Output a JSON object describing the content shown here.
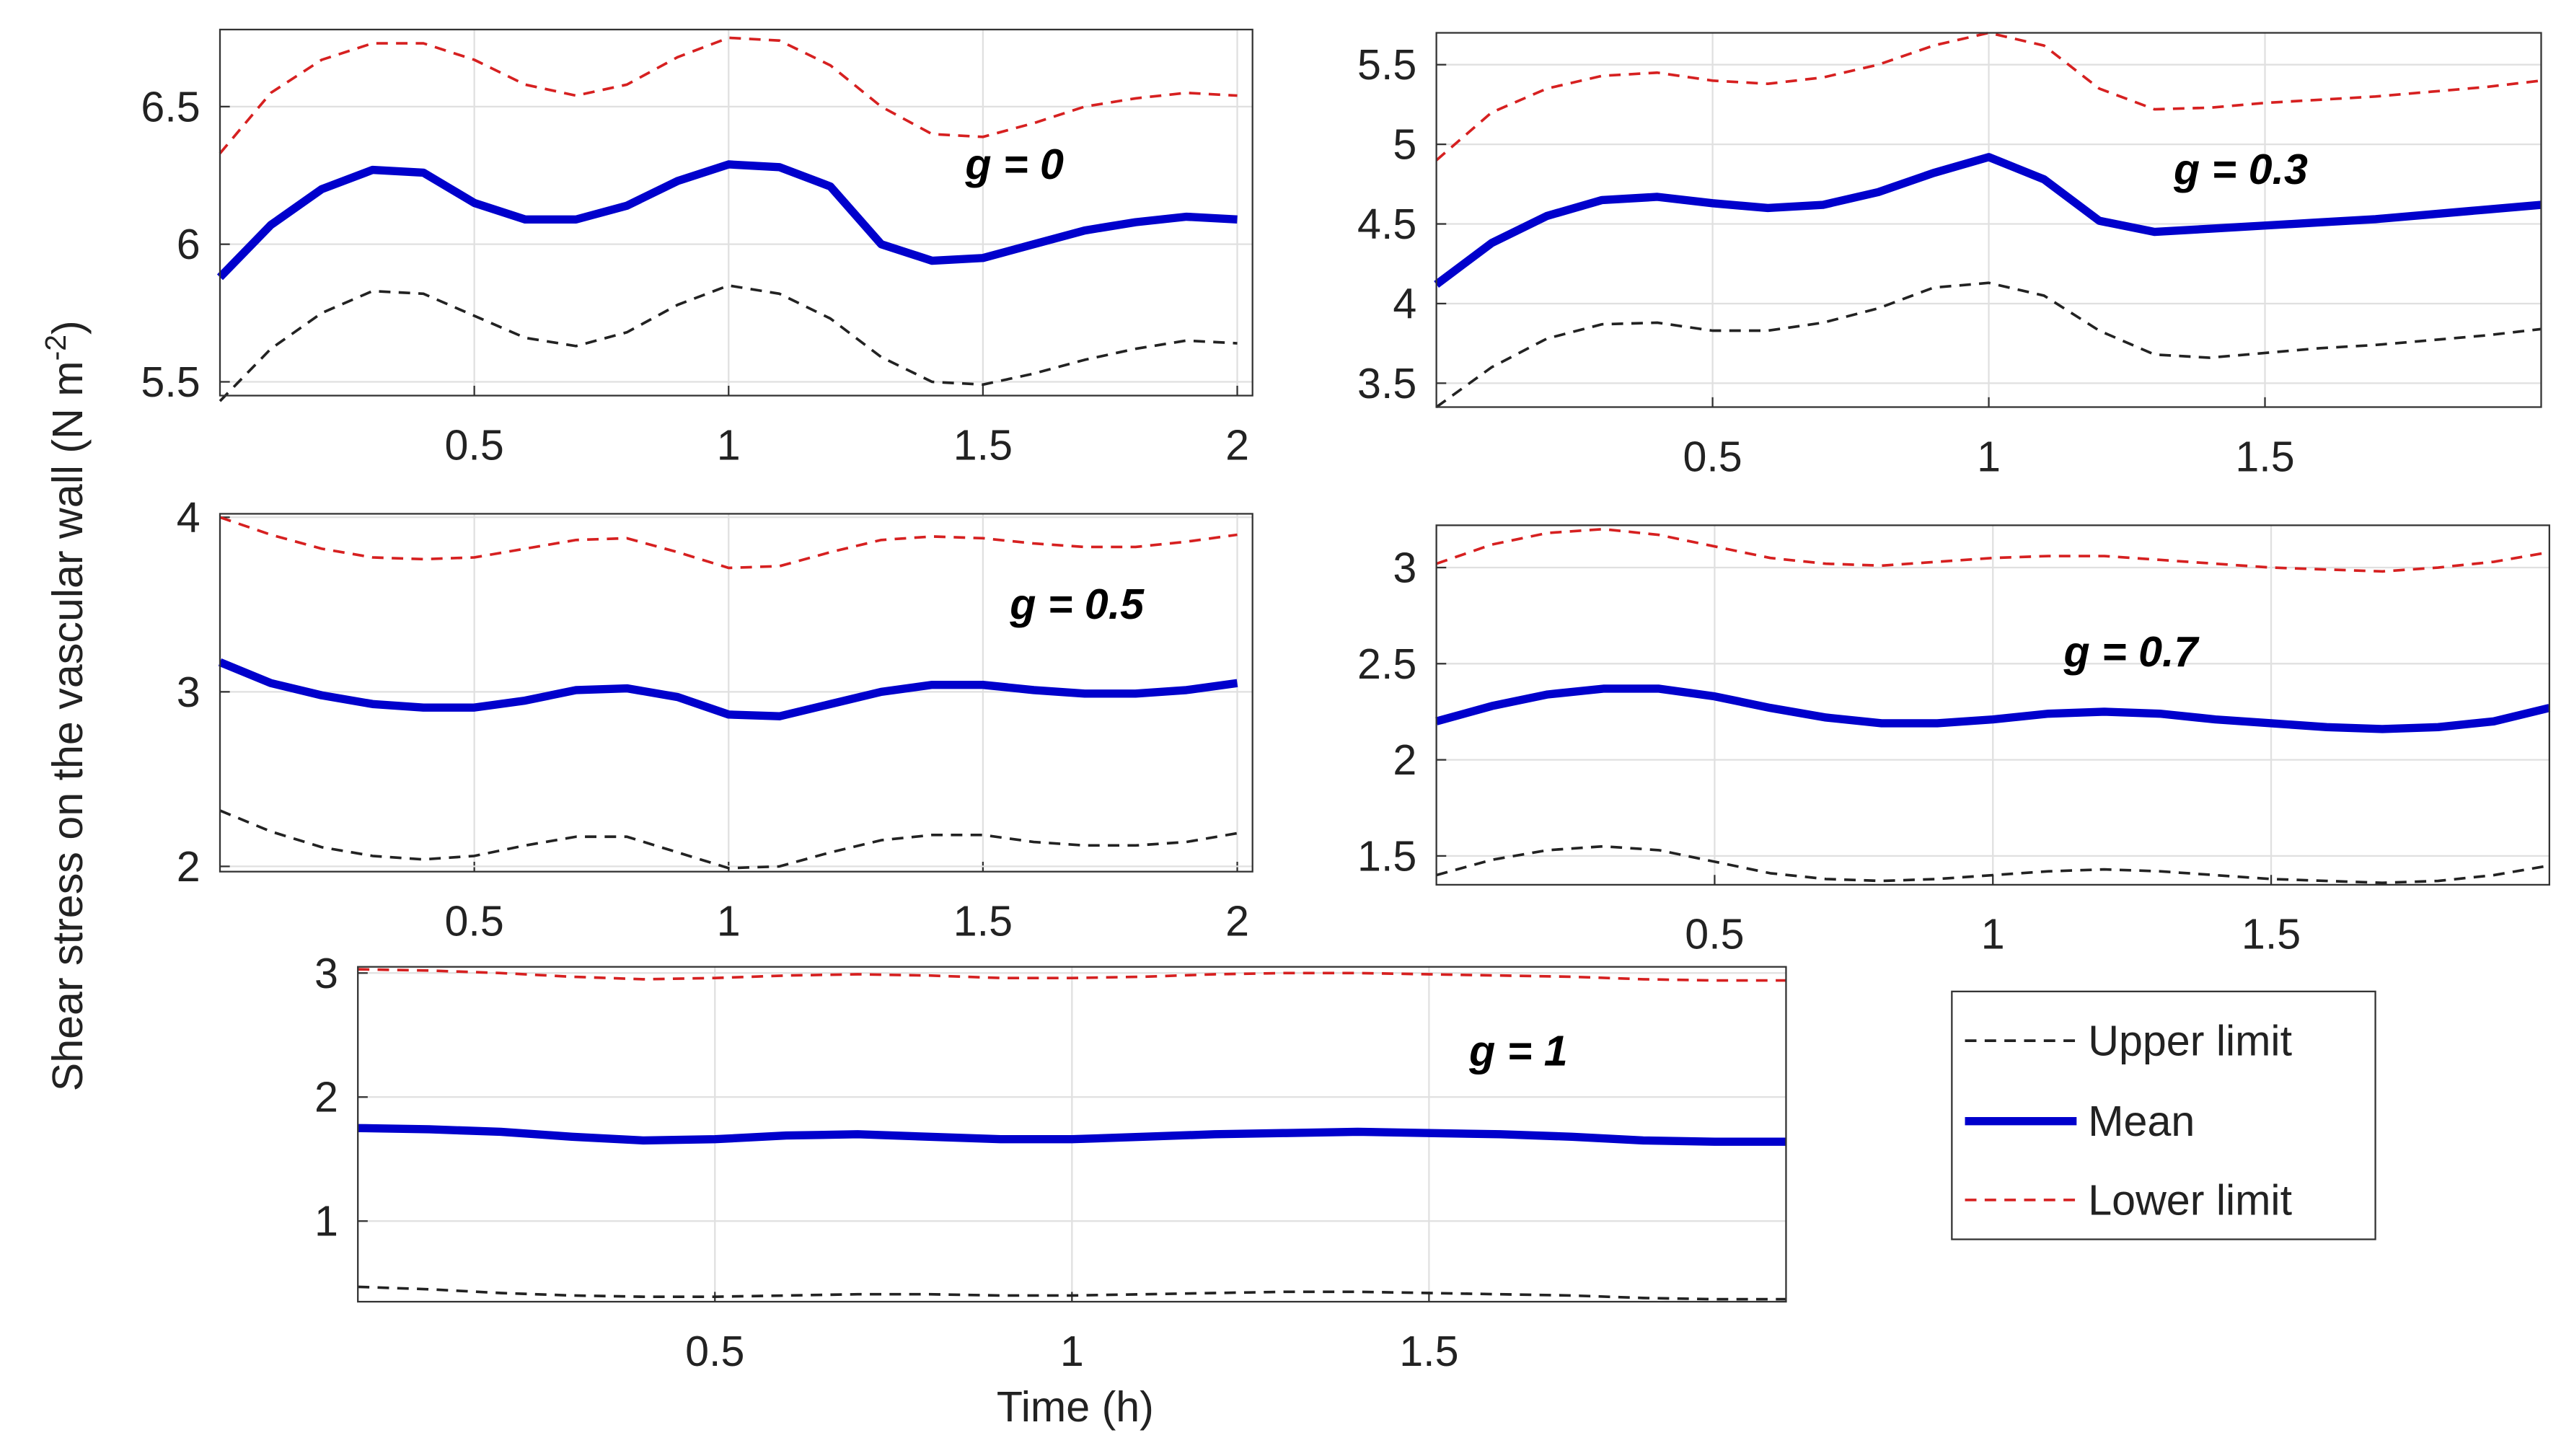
{
  "ylabel": "Shear stress on the vascular wall (N m",
  "ylabel_superscript": "-2",
  "ylabel_suffix": ")",
  "xlabel": "Time (h)",
  "chart_data": [
    {
      "type": "line",
      "annotation": "g = 0",
      "x": [
        0,
        0.1,
        0.2,
        0.3,
        0.4,
        0.5,
        0.6,
        0.7,
        0.8,
        0.9,
        1.0,
        1.1,
        1.2,
        1.3,
        1.4,
        1.5,
        1.6,
        1.7,
        1.8,
        1.9,
        2.0
      ],
      "xlim": [
        0,
        2.03
      ],
      "ylim": [
        5.45,
        6.78
      ],
      "xticks": [
        0.5,
        1,
        1.5,
        2
      ],
      "yticks": [
        5.5,
        6,
        6.5
      ],
      "grid": true,
      "series": [
        {
          "name": "Upper limit",
          "color": "#222222",
          "dash": true,
          "values": [
            5.43,
            5.62,
            5.75,
            5.83,
            5.82,
            5.74,
            5.66,
            5.63,
            5.68,
            5.78,
            5.85,
            5.82,
            5.73,
            5.59,
            5.5,
            5.49,
            5.53,
            5.58,
            5.62,
            5.65,
            5.64
          ]
        },
        {
          "name": "Mean",
          "color": "#0000cc",
          "dash": false,
          "values": [
            5.88,
            6.07,
            6.2,
            6.27,
            6.26,
            6.15,
            6.09,
            6.09,
            6.14,
            6.23,
            6.29,
            6.28,
            6.21,
            6.0,
            5.94,
            5.95,
            6.0,
            6.05,
            6.08,
            6.1,
            6.09
          ]
        },
        {
          "name": "Lower limit",
          "color": "#d62020",
          "dash": true,
          "values": [
            6.33,
            6.55,
            6.67,
            6.73,
            6.73,
            6.67,
            6.58,
            6.54,
            6.58,
            6.68,
            6.75,
            6.74,
            6.65,
            6.5,
            6.4,
            6.39,
            6.44,
            6.5,
            6.53,
            6.55,
            6.54
          ]
        }
      ]
    },
    {
      "type": "line",
      "annotation": "g = 0.3",
      "x": [
        0,
        0.1,
        0.2,
        0.3,
        0.4,
        0.5,
        0.6,
        0.7,
        0.8,
        0.9,
        1.0,
        1.1,
        1.2,
        1.3,
        1.4,
        1.5,
        1.6,
        1.7,
        1.8,
        1.9,
        2.0
      ],
      "xlim": [
        0,
        2
      ],
      "ylim": [
        3.35,
        5.7
      ],
      "xticks": [
        0.5,
        1,
        1.5
      ],
      "yticks": [
        3.5,
        4,
        4.5,
        5,
        5.5
      ],
      "grid": true,
      "series": [
        {
          "name": "Upper limit",
          "color": "#222222",
          "dash": true,
          "values": [
            3.35,
            3.6,
            3.78,
            3.87,
            3.88,
            3.83,
            3.83,
            3.88,
            3.97,
            4.1,
            4.13,
            4.05,
            3.83,
            3.68,
            3.66,
            3.69,
            3.72,
            3.74,
            3.77,
            3.8,
            3.84
          ]
        },
        {
          "name": "Mean",
          "color": "#0000cc",
          "dash": false,
          "values": [
            4.12,
            4.38,
            4.55,
            4.65,
            4.67,
            4.63,
            4.6,
            4.62,
            4.7,
            4.82,
            4.92,
            4.78,
            4.52,
            4.45,
            4.47,
            4.49,
            4.51,
            4.53,
            4.56,
            4.59,
            4.62
          ]
        },
        {
          "name": "Lower limit",
          "color": "#d62020",
          "dash": true,
          "values": [
            4.9,
            5.2,
            5.35,
            5.43,
            5.45,
            5.4,
            5.38,
            5.42,
            5.5,
            5.62,
            5.7,
            5.62,
            5.35,
            5.22,
            5.23,
            5.26,
            5.28,
            5.3,
            5.33,
            5.36,
            5.4
          ]
        }
      ]
    },
    {
      "type": "line",
      "annotation": "g = 0.5",
      "x": [
        0,
        0.1,
        0.2,
        0.3,
        0.4,
        0.5,
        0.6,
        0.7,
        0.8,
        0.9,
        1.0,
        1.1,
        1.2,
        1.3,
        1.4,
        1.5,
        1.6,
        1.7,
        1.8,
        1.9,
        2.0
      ],
      "xlim": [
        0,
        2.03
      ],
      "ylim": [
        1.97,
        4.02
      ],
      "xticks": [
        0.5,
        1,
        1.5,
        2
      ],
      "yticks": [
        2,
        3,
        4
      ],
      "grid": true,
      "series": [
        {
          "name": "Upper limit",
          "color": "#222222",
          "dash": true,
          "values": [
            2.32,
            2.2,
            2.11,
            2.06,
            2.04,
            2.06,
            2.12,
            2.17,
            2.17,
            2.08,
            1.99,
            2.0,
            2.08,
            2.15,
            2.18,
            2.18,
            2.14,
            2.12,
            2.12,
            2.14,
            2.19
          ]
        },
        {
          "name": "Mean",
          "color": "#0000cc",
          "dash": false,
          "values": [
            3.17,
            3.05,
            2.98,
            2.93,
            2.91,
            2.91,
            2.95,
            3.01,
            3.02,
            2.97,
            2.87,
            2.86,
            2.93,
            3.0,
            3.04,
            3.04,
            3.01,
            2.99,
            2.99,
            3.01,
            3.05
          ]
        },
        {
          "name": "Lower limit",
          "color": "#d62020",
          "dash": true,
          "values": [
            4.0,
            3.9,
            3.82,
            3.77,
            3.76,
            3.77,
            3.82,
            3.87,
            3.88,
            3.8,
            3.71,
            3.72,
            3.8,
            3.87,
            3.89,
            3.88,
            3.85,
            3.83,
            3.83,
            3.86,
            3.9
          ]
        }
      ]
    },
    {
      "type": "line",
      "annotation": "g = 0.7",
      "x": [
        0,
        0.1,
        0.2,
        0.3,
        0.4,
        0.5,
        0.6,
        0.7,
        0.8,
        0.9,
        1.0,
        1.1,
        1.2,
        1.3,
        1.4,
        1.5,
        1.6,
        1.7,
        1.8,
        1.9,
        2.0
      ],
      "xlim": [
        0,
        2
      ],
      "ylim": [
        1.35,
        3.22
      ],
      "xticks": [
        0.5,
        1,
        1.5
      ],
      "yticks": [
        1.5,
        2,
        2.5,
        3
      ],
      "grid": true,
      "series": [
        {
          "name": "Upper limit",
          "color": "#222222",
          "dash": true,
          "values": [
            1.4,
            1.48,
            1.53,
            1.55,
            1.53,
            1.47,
            1.41,
            1.38,
            1.37,
            1.38,
            1.4,
            1.42,
            1.43,
            1.42,
            1.4,
            1.38,
            1.37,
            1.36,
            1.37,
            1.4,
            1.45
          ]
        },
        {
          "name": "Mean",
          "color": "#0000cc",
          "dash": false,
          "values": [
            2.2,
            2.28,
            2.34,
            2.37,
            2.37,
            2.33,
            2.27,
            2.22,
            2.19,
            2.19,
            2.21,
            2.24,
            2.25,
            2.24,
            2.21,
            2.19,
            2.17,
            2.16,
            2.17,
            2.2,
            2.27
          ]
        },
        {
          "name": "Lower limit",
          "color": "#d62020",
          "dash": true,
          "values": [
            3.02,
            3.12,
            3.18,
            3.2,
            3.17,
            3.11,
            3.05,
            3.02,
            3.01,
            3.03,
            3.05,
            3.06,
            3.06,
            3.04,
            3.02,
            3.0,
            2.99,
            2.98,
            3.0,
            3.03,
            3.08
          ]
        }
      ]
    },
    {
      "type": "line",
      "annotation": "g = 1",
      "x": [
        0,
        0.1,
        0.2,
        0.3,
        0.4,
        0.5,
        0.6,
        0.7,
        0.8,
        0.9,
        1.0,
        1.1,
        1.2,
        1.3,
        1.4,
        1.5,
        1.6,
        1.7,
        1.8,
        1.9,
        2.0
      ],
      "xlim": [
        0,
        2
      ],
      "ylim": [
        0.35,
        3.05
      ],
      "xticks": [
        0.5,
        1,
        1.5
      ],
      "yticks": [
        1,
        2,
        3
      ],
      "grid": true,
      "series": [
        {
          "name": "Upper limit",
          "color": "#222222",
          "dash": true,
          "values": [
            0.47,
            0.45,
            0.42,
            0.4,
            0.39,
            0.39,
            0.4,
            0.41,
            0.41,
            0.4,
            0.4,
            0.41,
            0.42,
            0.43,
            0.43,
            0.42,
            0.41,
            0.4,
            0.38,
            0.37,
            0.37
          ]
        },
        {
          "name": "Mean",
          "color": "#0000cc",
          "dash": false,
          "values": [
            1.75,
            1.74,
            1.72,
            1.68,
            1.65,
            1.66,
            1.69,
            1.7,
            1.68,
            1.66,
            1.66,
            1.68,
            1.7,
            1.71,
            1.72,
            1.71,
            1.7,
            1.68,
            1.65,
            1.64,
            1.64
          ]
        },
        {
          "name": "Lower limit",
          "color": "#d62020",
          "dash": true,
          "values": [
            3.03,
            3.02,
            3.0,
            2.97,
            2.95,
            2.96,
            2.98,
            2.99,
            2.98,
            2.96,
            2.96,
            2.97,
            2.99,
            3.0,
            3.0,
            2.99,
            2.98,
            2.97,
            2.95,
            2.94,
            2.94
          ]
        }
      ]
    }
  ]
}
